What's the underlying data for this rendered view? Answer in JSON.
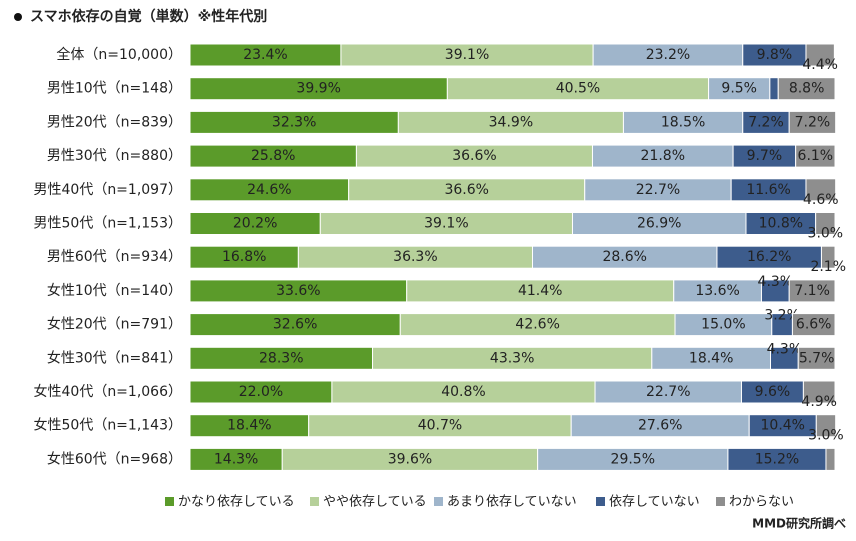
{
  "chart_data": {
    "type": "stacked-bar-horizontal",
    "title": "スマホ依存の自覚（単数）※性年代別",
    "source": "MMD研究所調べ",
    "categories": [
      "全体（n=10,000）",
      "男性10代（n=148）",
      "男性20代（n=839）",
      "男性30代（n=880）",
      "男性40代（n=1,097）",
      "男性50代（n=1,153）",
      "男性60代（n=934）",
      "女性10代（n=140）",
      "女性20代（n=791）",
      "女性30代（n=841）",
      "女性40代（n=1,066）",
      "女性50代（n=1,143）",
      "女性60代（n=968）"
    ],
    "xlim": [
      0,
      100
    ],
    "series": [
      {
        "name": "かなり依存している",
        "color": "#5b9b2a",
        "values": [
          23.4,
          39.9,
          32.3,
          25.8,
          24.6,
          20.2,
          16.8,
          33.6,
          32.6,
          28.3,
          22.0,
          18.4,
          14.3
        ],
        "value_labels": [
          "23.4%",
          "39.9%",
          "32.3%",
          "25.8%",
          "24.6%",
          "20.2%",
          "16.8%",
          "33.6%",
          "32.6%",
          "28.3%",
          "22.0%",
          "18.4%",
          "14.3%"
        ]
      },
      {
        "name": "やや依存している",
        "color": "#b6d09a",
        "values": [
          39.1,
          40.5,
          34.9,
          36.6,
          36.6,
          39.1,
          36.3,
          41.4,
          42.6,
          43.3,
          40.8,
          40.7,
          39.6
        ],
        "value_labels": [
          "39.1%",
          "40.5%",
          "34.9%",
          "36.6%",
          "36.6%",
          "39.1%",
          "36.3%",
          "41.4%",
          "42.6%",
          "43.3%",
          "40.8%",
          "40.7%",
          "39.6%"
        ]
      },
      {
        "name": "あまり依存していない",
        "color": "#9fb5cb",
        "values": [
          23.2,
          9.5,
          18.5,
          21.8,
          22.7,
          26.9,
          28.6,
          13.6,
          15.0,
          18.4,
          22.7,
          27.6,
          29.5
        ],
        "value_labels": [
          "23.2%",
          "9.5%",
          "18.5%",
          "21.8%",
          "22.7%",
          "26.9%",
          "28.6%",
          "13.6%",
          "15.0%",
          "18.4%",
          "22.7%",
          "27.6%",
          "29.5%"
        ]
      },
      {
        "name": "依存していない",
        "color": "#3d5c8c",
        "values": [
          9.8,
          1.3,
          7.2,
          9.7,
          11.6,
          10.8,
          16.2,
          4.3,
          3.2,
          4.3,
          9.6,
          10.4,
          15.2
        ],
        "value_labels": [
          "9.8%",
          null,
          "7.2%",
          "9.7%",
          "11.6%",
          "10.8%",
          "16.2%",
          "4.3%",
          "3.2%",
          "4.3%",
          "9.6%",
          "10.4%",
          "15.2%"
        ]
      },
      {
        "name": "わからない",
        "color": "#8e8e8e",
        "values": [
          4.4,
          8.8,
          7.2,
          6.1,
          4.6,
          3.0,
          2.1,
          7.1,
          6.6,
          5.7,
          4.9,
          3.0,
          1.4
        ],
        "value_labels": [
          "4.4%",
          "8.8%",
          "7.2%",
          "6.1%",
          "4.6%",
          "3.0%",
          "2.1%",
          "7.1%",
          "6.6%",
          "5.7%",
          "4.9%",
          "3.0%",
          null
        ]
      }
    ]
  }
}
